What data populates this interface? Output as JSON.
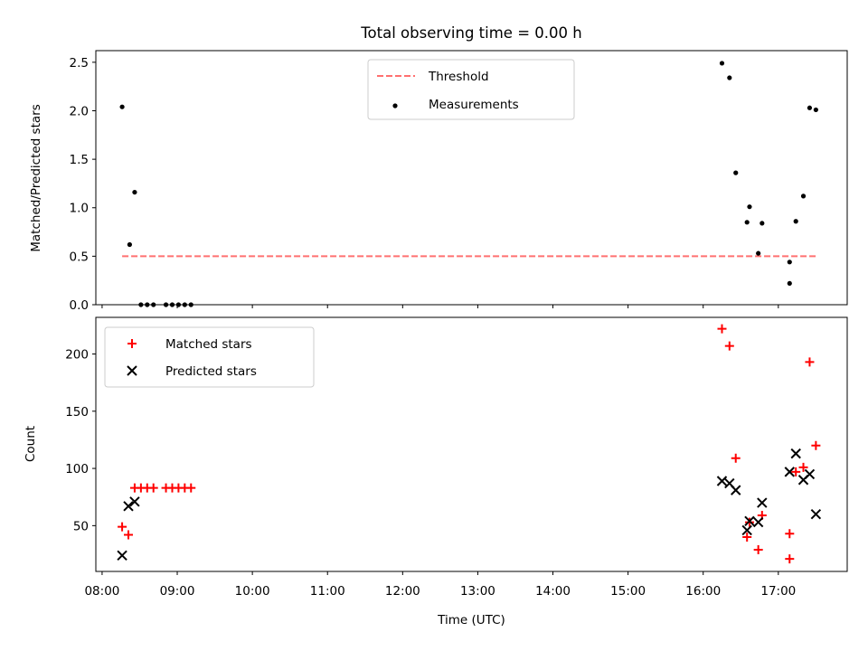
{
  "chart_data": [
    {
      "type": "scatter",
      "title": "Total observing time = 0.00 h",
      "xlabel": "",
      "ylabel": "Matched/Predicted stars",
      "xlim": [
        "07:55",
        "17:55"
      ],
      "ylim": [
        0,
        2.62
      ],
      "yticks": [
        "0.0",
        "0.5",
        "1.0",
        "1.5",
        "2.0",
        "2.5"
      ],
      "grid": false,
      "legend": {
        "placement": "top-center",
        "entries": [
          "Threshold",
          "Measurements"
        ]
      },
      "threshold": {
        "name": "Threshold",
        "value": 0.5,
        "x_start": "08:16",
        "x_end": "17:30",
        "color": "#ff7070",
        "style": "dashed"
      },
      "series": [
        {
          "name": "Measurements",
          "color": "#000000",
          "marker": "dot",
          "points": [
            [
              "08:16",
              2.04
            ],
            [
              "08:22",
              0.62
            ],
            [
              "08:26",
              1.16
            ],
            [
              "08:31",
              0.0
            ],
            [
              "08:36",
              0.0
            ],
            [
              "08:41",
              0.0
            ],
            [
              "08:51",
              0.0
            ],
            [
              "08:56",
              0.0
            ],
            [
              "09:01",
              0.0
            ],
            [
              "09:06",
              0.0
            ],
            [
              "09:11",
              0.0
            ],
            [
              "16:15",
              2.49
            ],
            [
              "16:21",
              2.34
            ],
            [
              "16:26",
              1.36
            ],
            [
              "16:35",
              0.85
            ],
            [
              "16:37",
              1.01
            ],
            [
              "16:44",
              0.53
            ],
            [
              "16:47",
              0.84
            ],
            [
              "17:09",
              0.44
            ],
            [
              "17:09",
              0.22
            ],
            [
              "17:14",
              0.86
            ],
            [
              "17:20",
              1.12
            ],
            [
              "17:25",
              2.03
            ],
            [
              "17:30",
              2.01
            ]
          ]
        }
      ]
    },
    {
      "type": "scatter",
      "title": "",
      "xlabel": "Time (UTC)",
      "ylabel": "Count",
      "xlim": [
        "07:55",
        "17:55"
      ],
      "xticks": [
        "08:00",
        "09:00",
        "10:00",
        "11:00",
        "12:00",
        "13:00",
        "14:00",
        "15:00",
        "16:00",
        "17:00"
      ],
      "ylim": [
        10,
        232
      ],
      "yticks": [
        "50",
        "100",
        "150",
        "200"
      ],
      "grid": false,
      "legend": {
        "placement": "top-left",
        "entries": [
          "Matched stars",
          "Predicted stars"
        ]
      },
      "series": [
        {
          "name": "Matched stars",
          "color": "#ff0000",
          "marker": "plus",
          "points": [
            [
              "08:16",
              49
            ],
            [
              "08:21",
              42
            ],
            [
              "08:26",
              83
            ],
            [
              "08:31",
              83
            ],
            [
              "08:36",
              83
            ],
            [
              "08:41",
              83
            ],
            [
              "08:51",
              83
            ],
            [
              "08:56",
              83
            ],
            [
              "09:01",
              83
            ],
            [
              "09:06",
              83
            ],
            [
              "09:11",
              83
            ],
            [
              "16:15",
              222
            ],
            [
              "16:21",
              207
            ],
            [
              "16:26",
              109
            ],
            [
              "16:35",
              40
            ],
            [
              "16:37",
              53
            ],
            [
              "16:44",
              29
            ],
            [
              "16:47",
              59
            ],
            [
              "17:09",
              43
            ],
            [
              "17:09",
              21
            ],
            [
              "17:14",
              97
            ],
            [
              "17:20",
              101
            ],
            [
              "17:25",
              193
            ],
            [
              "17:30",
              120
            ]
          ]
        },
        {
          "name": "Predicted stars",
          "color": "#000000",
          "marker": "x",
          "points": [
            [
              "08:16",
              24
            ],
            [
              "08:21",
              67
            ],
            [
              "08:26",
              71
            ],
            [
              "16:15",
              89
            ],
            [
              "16:21",
              87
            ],
            [
              "16:26",
              81
            ],
            [
              "16:35",
              46
            ],
            [
              "16:37",
              54
            ],
            [
              "16:44",
              53
            ],
            [
              "16:47",
              70
            ],
            [
              "17:09",
              97
            ],
            [
              "17:14",
              113
            ],
            [
              "17:20",
              90
            ],
            [
              "17:25",
              95
            ],
            [
              "17:30",
              60
            ]
          ]
        }
      ]
    }
  ]
}
